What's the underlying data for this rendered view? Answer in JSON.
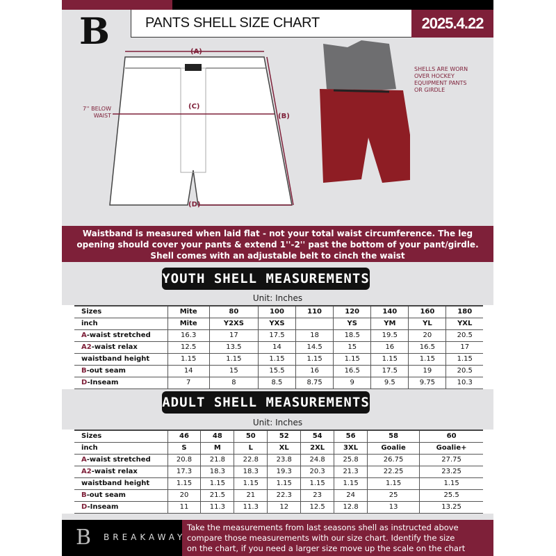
{
  "header": {
    "title": "PANTS SHELL SIZE CHART",
    "date": "2025.4.22",
    "logo_letter": "B"
  },
  "diagram": {
    "label_a": "(A)",
    "label_b": "(B)",
    "label_c": "(C)",
    "label_d": "(D)",
    "below_waist": "7'' BELOW WAIST",
    "shell_note": "SHELLS ARE WORN OVER HOCKEY EQUIPMENT PANTS OR GIRDLE"
  },
  "instructions": [
    "Waistband is measured when laid flat - not your total waist circumference. The leg",
    "opening should cover your pants & extend 1''-2'' past the bottom of your pant/girdle.",
    "Shell comes with an adjustable belt to cinch the waist"
  ],
  "youth": {
    "title": "YOUTH SHELL MEASUREMENTS",
    "unit": "Unit: Inches",
    "rows": [
      {
        "label": "Sizes",
        "values": [
          "Mite",
          "80",
          "100",
          "110",
          "120",
          "140",
          "160",
          "180"
        ]
      },
      {
        "label": "inch",
        "values": [
          "Mite",
          "Y2XS",
          "YXS",
          "",
          "YS",
          "YM",
          "YL",
          "YXL"
        ]
      },
      {
        "prefix": "A",
        "label": "-waist stretched",
        "values": [
          "16.3",
          "17",
          "17.5",
          "18",
          "18.5",
          "19.5",
          "20",
          "20.5"
        ]
      },
      {
        "prefix": "A2",
        "label": "-waist relax",
        "values": [
          "12.5",
          "13.5",
          "14",
          "14.5",
          "15",
          "16",
          "16.5",
          "17"
        ]
      },
      {
        "label": "waistband height",
        "values": [
          "1.15",
          "1.15",
          "1.15",
          "1.15",
          "1.15",
          "1.15",
          "1.15",
          "1.15"
        ]
      },
      {
        "prefix": "B",
        "label": "-out seam",
        "values": [
          "14",
          "15",
          "15.5",
          "16",
          "16.5",
          "17.5",
          "19",
          "20.5"
        ]
      },
      {
        "prefix": "D",
        "label": "-Inseam",
        "values": [
          "7",
          "8",
          "8.5",
          "8.75",
          "9",
          "9.5",
          "9.75",
          "10.3"
        ]
      }
    ]
  },
  "adult": {
    "title": "ADULT SHELL MEASUREMENTS",
    "unit": "Unit: Inches",
    "rows": [
      {
        "label": "Sizes",
        "values": [
          "46",
          "48",
          "50",
          "52",
          "54",
          "56",
          "58",
          "60"
        ]
      },
      {
        "label": "inch",
        "values": [
          "S",
          "M",
          "L",
          "XL",
          "2XL",
          "3XL",
          "Goalie",
          "Goalie+"
        ]
      },
      {
        "prefix": "A",
        "label": "-waist stretched",
        "values": [
          "20.8",
          "21.8",
          "22.8",
          "23.8",
          "24.8",
          "25.8",
          "26.75",
          "27.75"
        ]
      },
      {
        "prefix": "A2",
        "label": "-waist relax",
        "values": [
          "17.3",
          "18.3",
          "18.3",
          "19.3",
          "20.3",
          "21.3",
          "22.25",
          "23.25"
        ]
      },
      {
        "label": "waistband height",
        "values": [
          "1.15",
          "1.15",
          "1.15",
          "1.15",
          "1.15",
          "1.15",
          "1.15",
          "1.15"
        ]
      },
      {
        "prefix": "B",
        "label": "-out seam",
        "values": [
          "20",
          "21.5",
          "21",
          "22.3",
          "23",
          "24",
          "25",
          "25.5"
        ]
      },
      {
        "prefix": "D",
        "label": "-Inseam",
        "values": [
          "11",
          "11.3",
          "11.3",
          "12",
          "12.5",
          "12.8",
          "13",
          "13.25"
        ]
      }
    ]
  },
  "footer": {
    "brand": "BREAKAWAY",
    "text": [
      "Take the measurements from last seasons shell as instructed above",
      "compare those measurements  with our size chart. Identify the size",
      "on the chart, if you need a larger size move up the scale on the chart"
    ]
  },
  "colors": {
    "accent": "#7e2039",
    "dark": "#000000",
    "background": "#e2e2e4"
  }
}
